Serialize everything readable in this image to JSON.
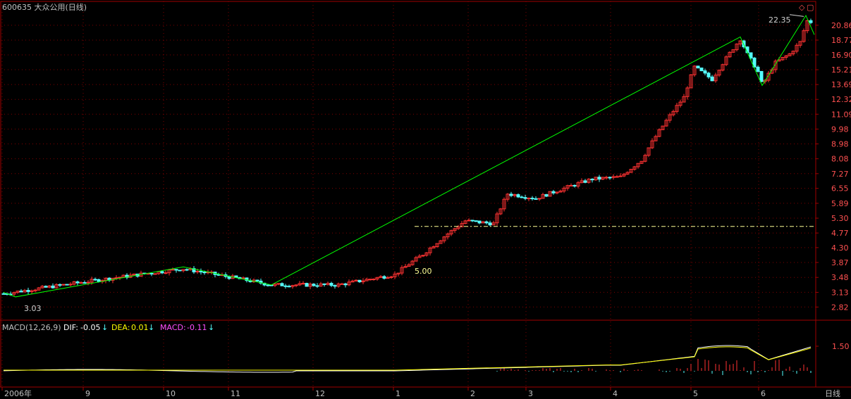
{
  "header": {
    "title": "600635 大众公用(日线)"
  },
  "window_controls": {
    "restore_glyph": "◇",
    "max_glyph": "▢"
  },
  "price_axis": {
    "ticks": [
      "20.86",
      "18.77",
      "16.90",
      "15.21",
      "13.69",
      "12.32",
      "11.09",
      "9.98",
      "8.98",
      "8.08",
      "7.27",
      "6.55",
      "5.89",
      "5.30",
      "4.77",
      "4.30",
      "3.87",
      "3.48",
      "3.13",
      "2.82"
    ]
  },
  "annotations": {
    "high_label": "22.35",
    "low_label": "3.03",
    "line_label": "5.00"
  },
  "macd": {
    "name": "MACD(12,26,9)",
    "dif_label": "DIF:",
    "dif_value": "-0.05",
    "dea_label": "DEA:",
    "dea_value": "0.01",
    "macd_label": "MACD:",
    "macd_value": "-0.11",
    "arrow": "↓",
    "axis_tick": "1.50"
  },
  "time_axis": {
    "labels": [
      "2006年",
      "9",
      "10",
      "11",
      "12",
      "1",
      "2",
      "3",
      "4",
      "5",
      "6"
    ],
    "period_label": "日线"
  },
  "colors": {
    "up": "#ff3232",
    "down": "#54ffff",
    "grid": "#800000",
    "zigzag": "#00ff00",
    "hline": "#ffff96",
    "dif": "#ffffff",
    "dea": "#ffff00",
    "macd_label": "#ff50ff"
  },
  "chart_data": {
    "type": "candlestick",
    "title": "600635 大众公用(日线)",
    "scale": "log",
    "ylim": [
      2.7,
      23.5
    ],
    "approx_closes": [
      {
        "date": "2006-08",
        "close": 3.1
      },
      {
        "date": "2006-10",
        "close": 3.7
      },
      {
        "date": "2006-11",
        "close": 3.3
      },
      {
        "date": "2006-12",
        "close": 3.3
      },
      {
        "date": "2007-01",
        "close": 3.6
      },
      {
        "date": "2007-02",
        "close": 5.2
      },
      {
        "date": "2007-03",
        "close": 6.3
      },
      {
        "date": "2007-04",
        "close": 7.6
      },
      {
        "date": "2007-05",
        "close": 13.9
      },
      {
        "date": "2007-05-end",
        "close": 18.9
      },
      {
        "date": "2007-06",
        "close": 13.6
      },
      {
        "date": "2007-06-end",
        "close": 19.0
      }
    ],
    "annotations": [
      "22.35",
      "3.03",
      "5.00"
    ],
    "macd": {
      "dif": -0.05,
      "dea": 0.01,
      "macd": -0.11
    }
  }
}
